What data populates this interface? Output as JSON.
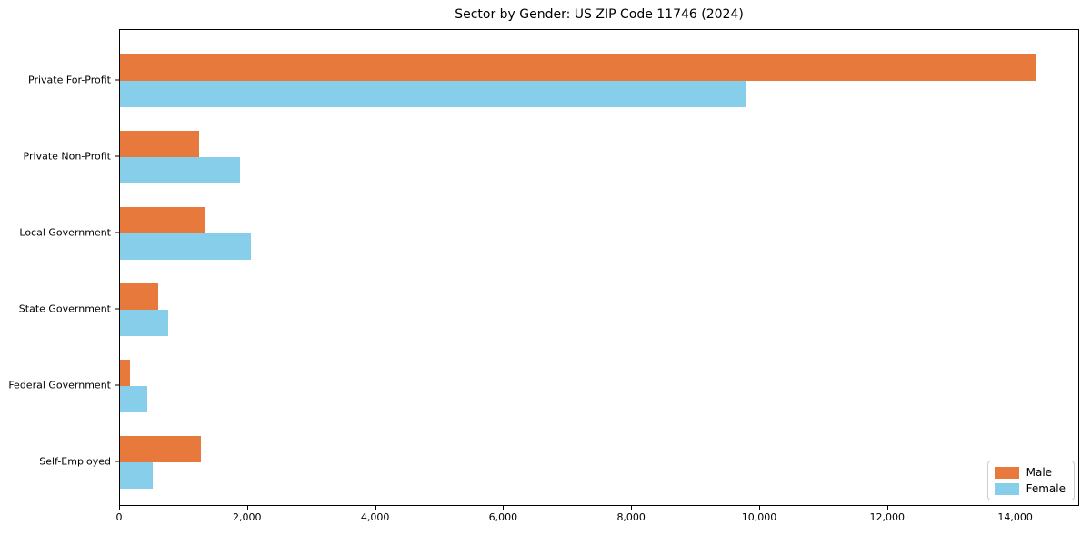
{
  "chart_data": {
    "type": "bar",
    "orientation": "horizontal",
    "title": "Sector by Gender: US ZIP Code 11746 (2024)",
    "categories": [
      "Private For-Profit",
      "Private Non-Profit",
      "Local Government",
      "State Government",
      "Federal Government",
      "Self-Employed"
    ],
    "series": [
      {
        "name": "Male",
        "color": "#E8793C",
        "values": [
          14300,
          1230,
          1330,
          600,
          150,
          1270
        ]
      },
      {
        "name": "Female",
        "color": "#87CEEB",
        "values": [
          9770,
          1880,
          2050,
          755,
          430,
          510
        ]
      }
    ],
    "xlabel": "",
    "ylabel": "",
    "xlim": [
      0,
      15000
    ],
    "x_ticks": [
      0,
      2000,
      4000,
      6000,
      8000,
      10000,
      12000,
      14000
    ],
    "grid": false,
    "legend": {
      "position": "lower-right",
      "entries": [
        "Male",
        "Female"
      ]
    },
    "colors": {
      "axis": "#000000",
      "background": "#ffffff",
      "legend_border": "#cccccc"
    }
  }
}
